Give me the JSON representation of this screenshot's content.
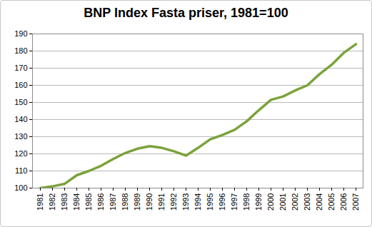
{
  "chart_data": {
    "type": "line",
    "title": "BNP Index Fasta priser, 1981=100",
    "categories": [
      "1981",
      "1982",
      "1983",
      "1984",
      "1985",
      "1986",
      "1987",
      "1988",
      "1989",
      "1990",
      "1991",
      "1992",
      "1993",
      "1994",
      "1995",
      "1996",
      "1997",
      "1998",
      "1999",
      "2000",
      "2001",
      "2002",
      "2003",
      "2004",
      "2005",
      "2006",
      "2007"
    ],
    "values": [
      100,
      101,
      102.5,
      107.5,
      110,
      113,
      117,
      120.5,
      123,
      124.5,
      123.5,
      121.5,
      119,
      123.5,
      128.5,
      131,
      134,
      139,
      145.5,
      151.5,
      153.5,
      157,
      160,
      166.5,
      172,
      179,
      184
    ],
    "color": "#7aa33a",
    "ylim": [
      100,
      190
    ],
    "yticks": [
      100,
      110,
      120,
      130,
      140,
      150,
      160,
      170,
      180,
      190
    ],
    "grid": true
  }
}
